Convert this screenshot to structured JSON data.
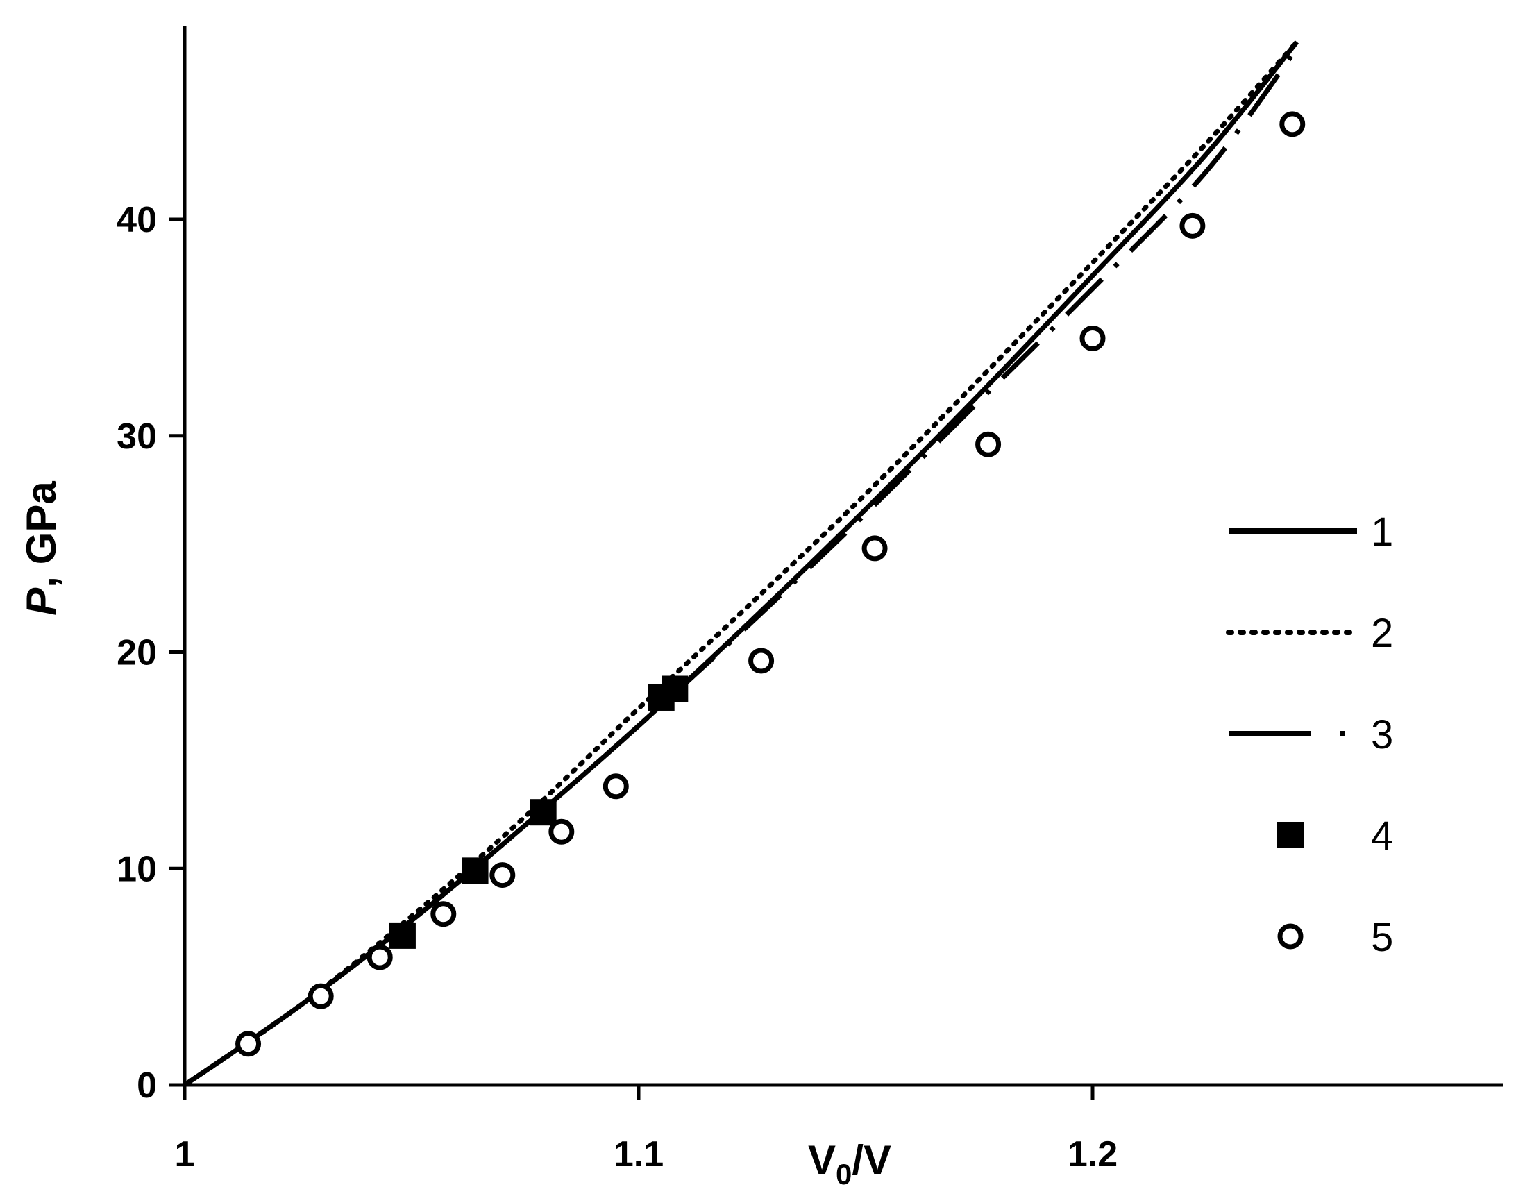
{
  "chart_data": {
    "type": "line",
    "title": "",
    "xlabel_main": "V",
    "xlabel_sub": "0",
    "xlabel_tail": "/V",
    "ylabel_italic": "P",
    "ylabel_rest": ", GPa",
    "xlim": [
      1.0,
      1.285
    ],
    "ylim": [
      0,
      49
    ],
    "x_ticks": [
      1.0,
      1.1,
      1.2
    ],
    "x_tick_labels": [
      "1",
      "1.1",
      "1.2"
    ],
    "y_ticks": [
      0,
      10,
      20,
      30,
      40
    ],
    "y_tick_labels": [
      "0",
      "10",
      "20",
      "30",
      "40"
    ],
    "grid": false,
    "legend_position": "right",
    "series": [
      {
        "name": "1",
        "style": "solid",
        "x": [
          1.0,
          1.025,
          1.05,
          1.075,
          1.1,
          1.125,
          1.15,
          1.175,
          1.2,
          1.225,
          1.245
        ],
        "y": [
          0,
          3.6,
          7.6,
          12.0,
          16.6,
          21.5,
          26.6,
          31.9,
          37.4,
          43.0,
          48.2
        ]
      },
      {
        "name": "2",
        "style": "dotted",
        "x": [
          1.0,
          1.025,
          1.05,
          1.075,
          1.1,
          1.125,
          1.15,
          1.175,
          1.2,
          1.225,
          1.245
        ],
        "y": [
          0,
          3.6,
          7.8,
          12.4,
          17.4,
          22.3,
          27.3,
          32.6,
          38.0,
          43.5,
          48.2
        ]
      },
      {
        "name": "3",
        "style": "dash-dot",
        "x": [
          1.0,
          1.025,
          1.05,
          1.075,
          1.1,
          1.125,
          1.15,
          1.175,
          1.2,
          1.225,
          1.245
        ],
        "y": [
          0,
          3.6,
          7.6,
          12.0,
          16.6,
          21.4,
          26.4,
          31.6,
          36.8,
          42.2,
          47.9
        ]
      },
      {
        "name": "4",
        "style": "filled-square",
        "x": [
          1.048,
          1.064,
          1.079,
          1.105,
          1.108
        ],
        "y": [
          6.9,
          9.9,
          12.6,
          17.9,
          18.3
        ]
      },
      {
        "name": "5",
        "style": "open-circle",
        "x": [
          1.014,
          1.03,
          1.043,
          1.057,
          1.07,
          1.083,
          1.095,
          1.127,
          1.152,
          1.177,
          1.2,
          1.222,
          1.244
        ],
        "y": [
          1.9,
          4.1,
          5.9,
          7.9,
          9.7,
          11.7,
          13.8,
          19.6,
          24.8,
          29.6,
          34.5,
          39.7,
          44.4
        ]
      }
    ]
  }
}
